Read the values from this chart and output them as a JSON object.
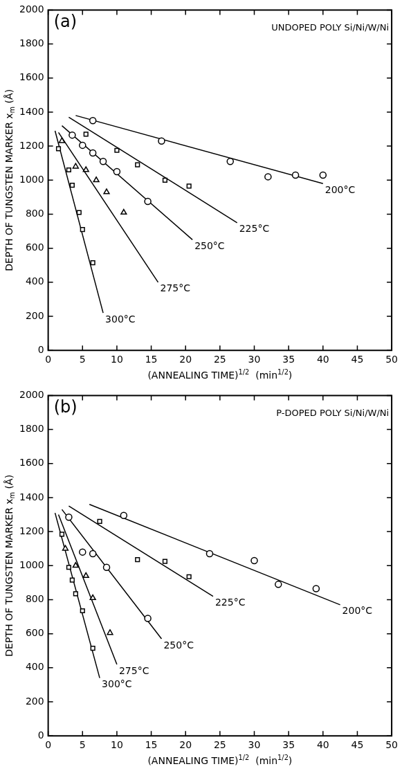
{
  "chart_data": [
    {
      "type": "scatter",
      "title": "(a)",
      "subtitle": "UNDOPED POLY Si/Ni/W/Ni",
      "xlabel": "(ANNEALING TIME)$^{1/2}$  (min$^{1/2}$)",
      "ylabel": "DEPTH OF TUNGSTEN MARKER x$_{m}$ (Å)",
      "xlim": [
        0,
        50
      ],
      "xticks": [
        0,
        5,
        10,
        15,
        20,
        25,
        30,
        35,
        40,
        45,
        50
      ],
      "ylim": [
        0,
        2000
      ],
      "yticks": [
        0,
        200,
        400,
        600,
        800,
        1000,
        1200,
        1400,
        1600,
        1800,
        2000
      ],
      "grid": false,
      "legend": false,
      "series": [
        {
          "type": "scatter",
          "marker": "circle",
          "color": "#000000",
          "x": [
            6.5,
            16.5,
            26.5,
            32,
            36,
            40
          ],
          "values": [
            1350,
            1230,
            1110,
            1020,
            1030,
            1030
          ]
        },
        {
          "type": "scatter",
          "marker": "square",
          "color": "#000000",
          "x": [
            5.5,
            10,
            13,
            17,
            20.5
          ],
          "values": [
            1270,
            1175,
            1090,
            1000,
            965
          ]
        },
        {
          "type": "scatter",
          "marker": "circle",
          "color": "#000000",
          "x": [
            3.5,
            5,
            6.5,
            8,
            10,
            14.5
          ],
          "values": [
            1265,
            1205,
            1160,
            1110,
            1050,
            875
          ]
        },
        {
          "type": "scatter",
          "marker": "triangle",
          "color": "#000000",
          "x": [
            2,
            4,
            5.5,
            7,
            8.5,
            11
          ],
          "values": [
            1230,
            1080,
            1060,
            1000,
            930,
            810
          ]
        },
        {
          "type": "scatter",
          "marker": "square",
          "color": "#000000",
          "x": [
            1.5,
            3,
            3.5,
            4.5,
            5,
            6.5
          ],
          "values": [
            1185,
            1060,
            970,
            810,
            710,
            515
          ]
        },
        {
          "type": "line",
          "color": "#000000",
          "x": [
            4,
            40
          ],
          "values": [
            1380,
            980
          ]
        },
        {
          "type": "line",
          "color": "#000000",
          "x": [
            3,
            27.5
          ],
          "values": [
            1370,
            750
          ]
        },
        {
          "type": "line",
          "color": "#000000",
          "x": [
            2,
            21
          ],
          "values": [
            1320,
            650
          ]
        },
        {
          "type": "line",
          "color": "#000000",
          "x": [
            1.5,
            16
          ],
          "values": [
            1280,
            400
          ]
        },
        {
          "type": "line",
          "color": "#000000",
          "x": [
            1,
            8
          ],
          "values": [
            1290,
            220
          ]
        }
      ],
      "annotations": [
        {
          "text": "200°C",
          "x": 40,
          "y": 980
        },
        {
          "text": "225°C",
          "x": 27.5,
          "y": 750
        },
        {
          "text": "250°C",
          "x": 21,
          "y": 650
        },
        {
          "text": "275°C",
          "x": 16,
          "y": 400
        },
        {
          "text": "300°C",
          "x": 8,
          "y": 220
        }
      ]
    },
    {
      "type": "scatter",
      "title": "(b)",
      "subtitle": "P-DOPED POLY Si/Ni/W/Ni",
      "xlabel": "(ANNEALING TIME)$^{1/2}$  (min$^{1/2}$)",
      "ylabel": "DEPTH OF TUNGSTEN MARKER x$_{m}$ (Å)",
      "xlim": [
        0,
        50
      ],
      "xticks": [
        0,
        5,
        10,
        15,
        20,
        25,
        30,
        35,
        40,
        45,
        50
      ],
      "ylim": [
        0,
        2000
      ],
      "yticks": [
        0,
        200,
        400,
        600,
        800,
        1000,
        1200,
        1400,
        1600,
        1800,
        2000
      ],
      "grid": false,
      "legend": false,
      "series": [
        {
          "type": "scatter",
          "marker": "circle",
          "color": "#000000",
          "x": [
            11,
            23.5,
            30,
            33.5,
            39
          ],
          "values": [
            1295,
            1070,
            1030,
            890,
            865
          ]
        },
        {
          "type": "scatter",
          "marker": "square",
          "color": "#000000",
          "x": [
            7.5,
            13,
            17,
            20.5
          ],
          "values": [
            1260,
            1035,
            1025,
            935
          ]
        },
        {
          "type": "scatter",
          "marker": "circle",
          "color": "#000000",
          "x": [
            3,
            5,
            6.5,
            8.5,
            14.5
          ],
          "values": [
            1285,
            1080,
            1070,
            990,
            690
          ]
        },
        {
          "type": "scatter",
          "marker": "triangle",
          "color": "#000000",
          "x": [
            2.5,
            4,
            5.5,
            6.5,
            9
          ],
          "values": [
            1100,
            1000,
            940,
            810,
            605
          ]
        },
        {
          "type": "scatter",
          "marker": "square",
          "color": "#000000",
          "x": [
            2,
            3,
            3.5,
            4,
            5,
            6.5
          ],
          "values": [
            1185,
            990,
            915,
            835,
            735,
            515
          ]
        },
        {
          "type": "line",
          "color": "#000000",
          "x": [
            6,
            42.5
          ],
          "values": [
            1360,
            770
          ]
        },
        {
          "type": "line",
          "color": "#000000",
          "x": [
            3,
            24
          ],
          "values": [
            1350,
            820
          ]
        },
        {
          "type": "line",
          "color": "#000000",
          "x": [
            2,
            16.5
          ],
          "values": [
            1330,
            570
          ]
        },
        {
          "type": "line",
          "color": "#000000",
          "x": [
            1.5,
            10
          ],
          "values": [
            1300,
            420
          ]
        },
        {
          "type": "line",
          "color": "#000000",
          "x": [
            1,
            7.5
          ],
          "values": [
            1310,
            340
          ]
        }
      ],
      "annotations": [
        {
          "text": "200°C",
          "x": 42.5,
          "y": 770
        },
        {
          "text": "225°C",
          "x": 24,
          "y": 820
        },
        {
          "text": "250°C",
          "x": 16.5,
          "y": 570
        },
        {
          "text": "275°C",
          "x": 10,
          "y": 420
        },
        {
          "text": "300°C",
          "x": 7.5,
          "y": 340
        }
      ]
    }
  ]
}
